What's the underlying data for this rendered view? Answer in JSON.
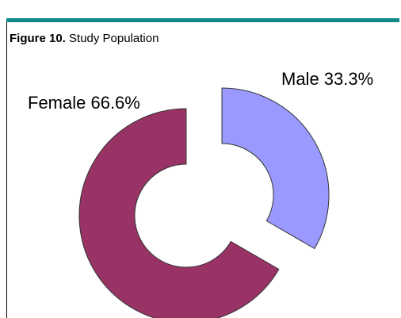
{
  "figure": {
    "label": "Figure 10.",
    "title": "Study Population"
  },
  "chart_data": {
    "type": "pie",
    "style": "exploded-donut",
    "title": "Study Population",
    "slices": [
      {
        "name": "Male",
        "value": 33.3,
        "label": "Male 33.3%",
        "color": "#9999ff"
      },
      {
        "name": "Female",
        "value": 66.6,
        "label": "Female 66.6%",
        "color": "#993366"
      }
    ]
  },
  "colors": {
    "accent_bar": "#0e8a89"
  }
}
